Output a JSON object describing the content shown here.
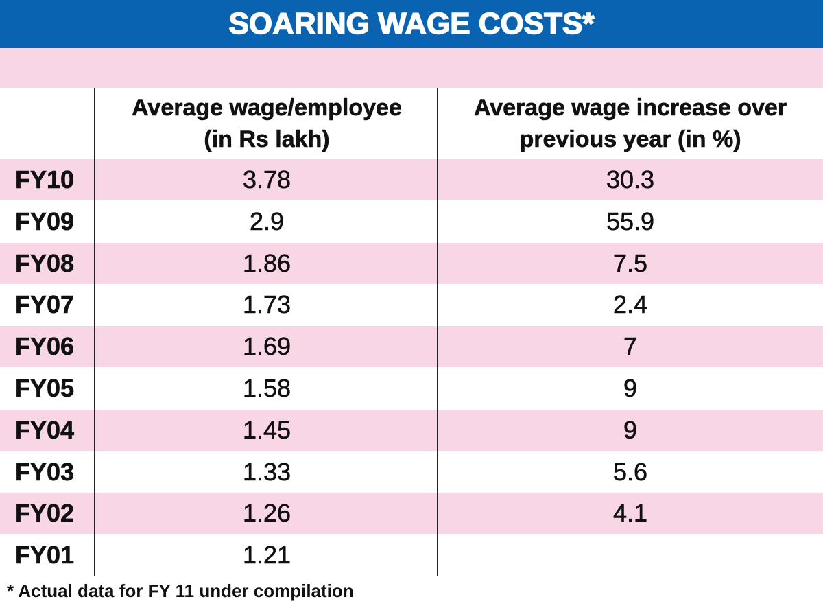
{
  "title": "SOARING WAGE COSTS*",
  "footnote": "* Actual data for FY 11 under compilation",
  "colors": {
    "title_bar": "#0a63b0",
    "title_text": "#ffffff",
    "row_pink": "#f9d6e6",
    "row_white": "#ffffff"
  },
  "chart_data": {
    "type": "table",
    "title": "SOARING WAGE COSTS*",
    "columns": [
      "",
      "Average wage/employee (in Rs lakh)",
      "Average wage increase over previous year (in %)"
    ],
    "column_lines": [
      [
        "Average wage/employee",
        "(in Rs lakh)"
      ],
      [
        "Average wage increase over",
        "previous year (in %)"
      ]
    ],
    "rows": [
      {
        "label": "FY10",
        "wage": "3.78",
        "increase": "30.3"
      },
      {
        "label": "FY09",
        "wage": "2.9",
        "increase": "55.9"
      },
      {
        "label": "FY08",
        "wage": "1.86",
        "increase": "7.5"
      },
      {
        "label": "FY07",
        "wage": "1.73",
        "increase": "2.4"
      },
      {
        "label": "FY06",
        "wage": "1.69",
        "increase": "7"
      },
      {
        "label": "FY05",
        "wage": "1.58",
        "increase": "9"
      },
      {
        "label": "FY04",
        "wage": "1.45",
        "increase": "9"
      },
      {
        "label": "FY03",
        "wage": "1.33",
        "increase": "5.6"
      },
      {
        "label": "FY02",
        "wage": "1.26",
        "increase": "4.1"
      },
      {
        "label": "FY01",
        "wage": "1.21",
        "increase": ""
      }
    ],
    "footnote": "* Actual data for FY 11 under compilation"
  }
}
